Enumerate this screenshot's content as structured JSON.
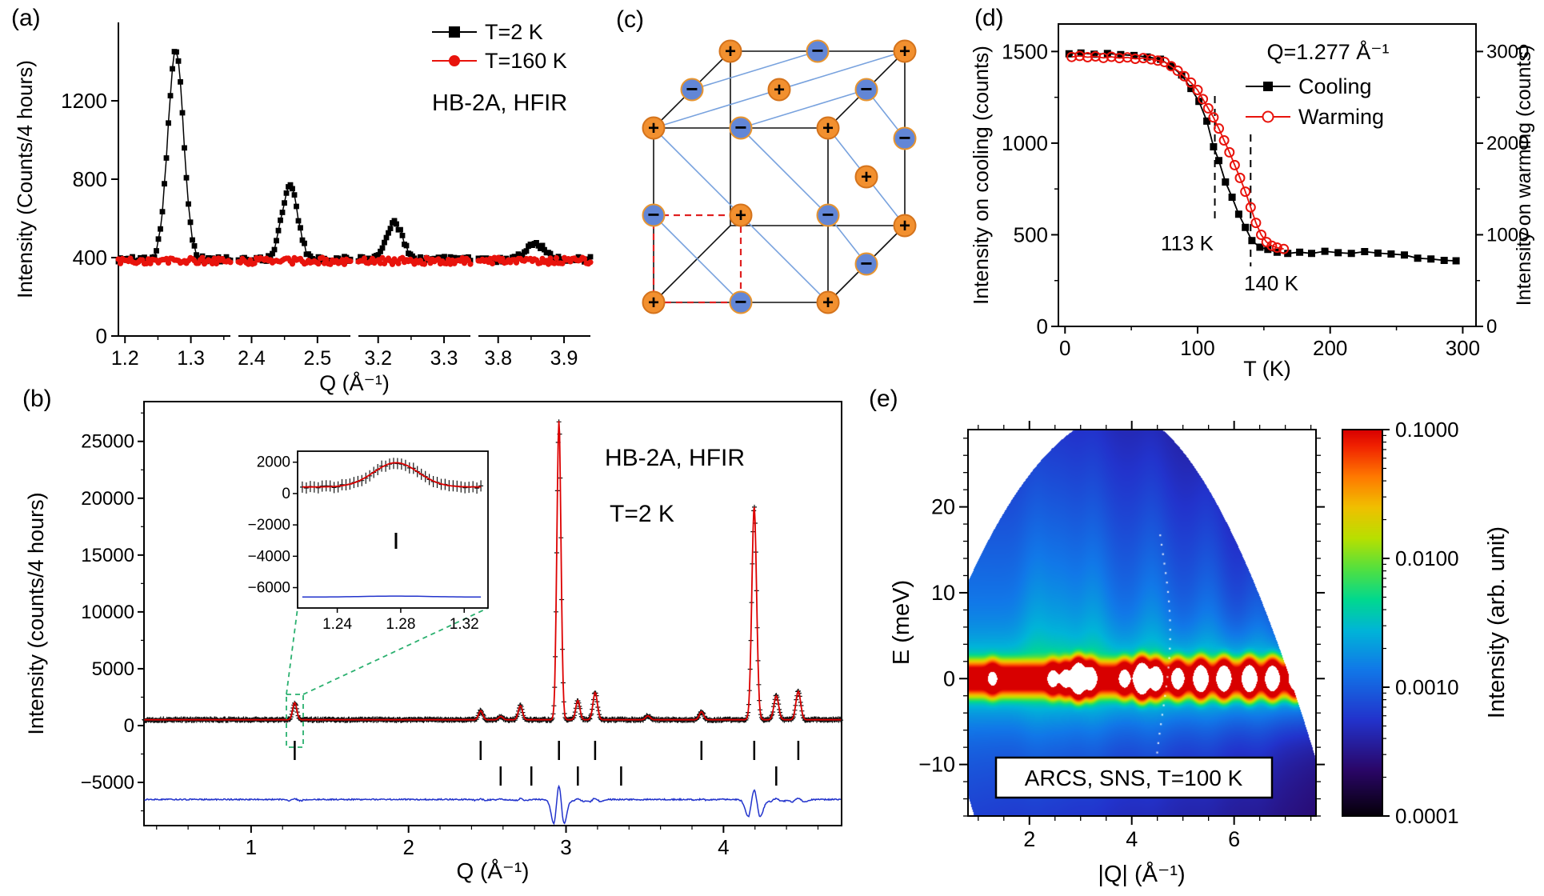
{
  "labels": {
    "a": "(a)",
    "b": "(b)",
    "c": "(c)",
    "d": "(d)",
    "e": "(e)"
  },
  "chart_data": [
    {
      "id": "a",
      "type": "line",
      "panel": "(a)",
      "instrument": "HB-2A, HFIR",
      "xlabel": "Q (Å⁻¹)",
      "ylabel": "Intensity (Counts/4 hours)",
      "ylim": [
        0,
        1600
      ],
      "yticks": [
        0,
        400,
        800,
        1200
      ],
      "series": [
        {
          "name": "T=2 K",
          "color": "#000000",
          "marker": "square",
          "baseline": 390
        },
        {
          "name": "T=160 K",
          "color": "#e8130c",
          "marker": "circle",
          "baseline": 383
        }
      ],
      "segments": [
        {
          "xlim": [
            1.19,
            1.36
          ],
          "xticks": [
            1.2,
            1.3
          ],
          "minor": [
            1.25,
            1.35
          ],
          "peak": {
            "center": 1.277,
            "amplitude": 1065,
            "sigma": 0.012
          }
        },
        {
          "xlim": [
            2.38,
            2.55
          ],
          "xticks": [
            2.4,
            2.5
          ],
          "minor": [
            2.45
          ],
          "peak": {
            "center": 2.458,
            "amplitude": 380,
            "sigma": 0.012
          }
        },
        {
          "xlim": [
            3.17,
            3.34
          ],
          "xticks": [
            3.2,
            3.3
          ],
          "minor": [
            3.25
          ],
          "peak": {
            "center": 3.225,
            "amplitude": 185,
            "sigma": 0.012
          }
        },
        {
          "xlim": [
            3.77,
            3.94
          ],
          "xticks": [
            3.8,
            3.9
          ],
          "minor": [
            3.85
          ],
          "peak": {
            "center": 3.855,
            "amplitude": 90,
            "sigma": 0.013
          }
        }
      ]
    },
    {
      "id": "b",
      "type": "line",
      "panel": "(b)",
      "annotations": [
        "HB-2A, HFIR",
        "T=2 K"
      ],
      "xlabel": "Q (Å⁻¹)",
      "ylabel": "Intensity (counts/4 hours)",
      "xlim": [
        0.32,
        4.75
      ],
      "xticks": [
        1,
        2,
        3,
        4
      ],
      "yticks": [
        -5000,
        0,
        5000,
        10000,
        15000,
        20000,
        25000
      ],
      "baseline": 510,
      "noise": 90,
      "diff_level": -6500,
      "peaks": [
        [
          1.277,
          1500,
          0.013
        ],
        [
          2.458,
          800,
          0.013
        ],
        [
          2.585,
          300,
          0.013
        ],
        [
          2.71,
          1250,
          0.013
        ],
        [
          2.955,
          26300,
          0.013
        ],
        [
          3.075,
          1700,
          0.013
        ],
        [
          3.185,
          2400,
          0.014
        ],
        [
          3.52,
          350,
          0.014
        ],
        [
          3.86,
          700,
          0.014
        ],
        [
          4.195,
          18800,
          0.015
        ],
        [
          4.335,
          2100,
          0.015
        ],
        [
          4.475,
          2500,
          0.015
        ]
      ],
      "bragg_row1": [
        1.277,
        2.458,
        2.955,
        3.185,
        3.86,
        4.195,
        4.475
      ],
      "bragg_row2": [
        2.585,
        2.78,
        3.075,
        3.35,
        4.335
      ],
      "colors": {
        "data": "#151515",
        "fit": "#dd0000",
        "diff": "#2233cc",
        "bragg": "#000000",
        "zoom_box": "#2ab06f"
      },
      "inset": {
        "xlim": [
          1.215,
          1.335
        ],
        "xticks": [
          1.24,
          1.28,
          1.32
        ],
        "yticks": [
          2000,
          0,
          -2000,
          -4000,
          -6000
        ],
        "baseline": 420,
        "peak": {
          "center": 1.277,
          "amplitude": 1550,
          "sigma": 0.014
        },
        "bragg": [
          1.277
        ],
        "diff_level": -6600
      }
    },
    {
      "id": "c",
      "type": "diagram",
      "panel": "(c)",
      "description": "Cubic cell with alternating + and − charge order; blue lines mark (111)-type planes; red dashed square marks sublattice cell",
      "colors": {
        "edge": "#111111",
        "plane": "#78a2de",
        "subcell": "#e02020",
        "plus_fill": "#f2902f",
        "plus_ring": "#d4731c",
        "plus_sign": "#2d2de0",
        "minus_fill": "#6286d6",
        "minus_ring": "#e8952f",
        "minus_sign": "#f2e22e"
      },
      "sites": [
        [
          0,
          0,
          0,
          "+"
        ],
        [
          0.5,
          0,
          0,
          "-"
        ],
        [
          1,
          0,
          0,
          "+"
        ],
        [
          0,
          0.5,
          0,
          "-"
        ],
        [
          0.5,
          0.5,
          0,
          "+"
        ],
        [
          1,
          0.5,
          0,
          "-"
        ],
        [
          0,
          1,
          0,
          "+"
        ],
        [
          0.5,
          1,
          0,
          "-"
        ],
        [
          1,
          1,
          0,
          "+"
        ],
        [
          0,
          1,
          0.5,
          "-"
        ],
        [
          0.5,
          1,
          0.5,
          "+"
        ],
        [
          1,
          1,
          0.5,
          "-"
        ],
        [
          0,
          1,
          1,
          "+"
        ],
        [
          0.5,
          1,
          1,
          "-"
        ],
        [
          1,
          1,
          1,
          "+"
        ],
        [
          1,
          0,
          0.5,
          "-"
        ],
        [
          1,
          0.5,
          0.5,
          "+"
        ],
        [
          1,
          0,
          1,
          "+"
        ],
        [
          1,
          0.5,
          1,
          "-"
        ]
      ],
      "edges": [
        [
          [
            0,
            0,
            0
          ],
          [
            1,
            0,
            0
          ]
        ],
        [
          [
            0,
            0,
            0
          ],
          [
            0,
            1,
            0
          ]
        ],
        [
          [
            0,
            0,
            0
          ],
          [
            0,
            0,
            1
          ]
        ],
        [
          [
            1,
            0,
            0
          ],
          [
            1,
            1,
            0
          ]
        ],
        [
          [
            1,
            0,
            0
          ],
          [
            1,
            0,
            1
          ]
        ],
        [
          [
            0,
            1,
            0
          ],
          [
            1,
            1,
            0
          ]
        ],
        [
          [
            0,
            1,
            0
          ],
          [
            0,
            1,
            1
          ]
        ],
        [
          [
            0,
            0,
            1
          ],
          [
            1,
            0,
            1
          ]
        ],
        [
          [
            0,
            0,
            1
          ],
          [
            0,
            1,
            1
          ]
        ],
        [
          [
            1,
            1,
            0
          ],
          [
            1,
            1,
            1
          ]
        ],
        [
          [
            1,
            0,
            1
          ],
          [
            1,
            1,
            1
          ]
        ],
        [
          [
            0,
            1,
            1
          ],
          [
            1,
            1,
            1
          ]
        ]
      ],
      "plane_lines": [
        [
          [
            0,
            1,
            0
          ],
          [
            1,
            1,
            1
          ]
        ],
        [
          [
            0.5,
            1,
            0
          ],
          [
            1,
            1,
            0.5
          ]
        ],
        [
          [
            0,
            1,
            0.5
          ],
          [
            0.5,
            1,
            1
          ]
        ],
        [
          [
            1,
            1,
            0
          ],
          [
            1,
            0,
            1
          ]
        ],
        [
          [
            1,
            0.5,
            0
          ],
          [
            1,
            0,
            0.5
          ]
        ],
        [
          [
            1,
            1,
            0.5
          ],
          [
            1,
            0.5,
            1
          ]
        ],
        [
          [
            0,
            1,
            0
          ],
          [
            1,
            0,
            0
          ]
        ],
        [
          [
            0,
            0.5,
            0
          ],
          [
            0.5,
            0,
            0
          ]
        ],
        [
          [
            0.5,
            1,
            0
          ],
          [
            1,
            0.5,
            0
          ]
        ]
      ],
      "subcell": [
        [
          0,
          0,
          0
        ],
        [
          0.5,
          0,
          0
        ],
        [
          0.5,
          0.5,
          0
        ],
        [
          0,
          0.5,
          0
        ]
      ]
    },
    {
      "id": "d",
      "type": "line",
      "panel": "(d)",
      "annotation": "Q=1.277 Å⁻¹",
      "xlabel": "T (K)",
      "ylabel_left": "Intensity on cooling (counts)",
      "ylabel_right": "Intensity on warming (counts)",
      "xlim": [
        -5,
        310
      ],
      "xticks": [
        0,
        100,
        200,
        300
      ],
      "ylim_left": [
        0,
        1650
      ],
      "yticks_left": [
        0,
        500,
        1000,
        1500
      ],
      "ylim_right": [
        0,
        3300
      ],
      "yticks_right": [
        0,
        1000,
        2000,
        3000
      ],
      "transition_labels": [
        {
          "text": "113 K",
          "T": 113
        },
        {
          "text": "140 K",
          "T": 140
        }
      ],
      "series": [
        {
          "name": "Cooling",
          "color": "#000000",
          "marker": "square",
          "axis": "left",
          "points": [
            [
              3,
              1487
            ],
            [
              12,
              1492
            ],
            [
              22,
              1485
            ],
            [
              32,
              1489
            ],
            [
              42,
              1483
            ],
            [
              52,
              1478
            ],
            [
              62,
              1470
            ],
            [
              72,
              1458
            ],
            [
              80,
              1420
            ],
            [
              88,
              1372
            ],
            [
              95,
              1298
            ],
            [
              101,
              1228
            ],
            [
              107,
              1120
            ],
            [
              112,
              980
            ],
            [
              116,
              905
            ],
            [
              121,
              788
            ],
            [
              126,
              705
            ],
            [
              131,
              612
            ],
            [
              136,
              540
            ],
            [
              141,
              468
            ],
            [
              147,
              432
            ],
            [
              153,
              420
            ],
            [
              160,
              405
            ],
            [
              168,
              398
            ],
            [
              177,
              405
            ],
            [
              186,
              398
            ],
            [
              196,
              410
            ],
            [
              206,
              402
            ],
            [
              216,
              398
            ],
            [
              226,
              408
            ],
            [
              236,
              400
            ],
            [
              246,
              395
            ],
            [
              256,
              390
            ],
            [
              266,
              372
            ],
            [
              276,
              368
            ],
            [
              286,
              360
            ],
            [
              295,
              358
            ]
          ]
        },
        {
          "name": "Warming",
          "color": "#e8130c",
          "marker": "open-circle",
          "axis": "right",
          "points": [
            [
              5,
              2940
            ],
            [
              11,
              2952
            ],
            [
              17,
              2938
            ],
            [
              23,
              2946
            ],
            [
              29,
              2930
            ],
            [
              35,
              2942
            ],
            [
              41,
              2928
            ],
            [
              47,
              2935
            ],
            [
              53,
              2920
            ],
            [
              59,
              2928
            ],
            [
              65,
              2915
            ],
            [
              70,
              2900
            ],
            [
              75,
              2885
            ],
            [
              80,
              2840
            ],
            [
              85,
              2790
            ],
            [
              90,
              2730
            ],
            [
              95,
              2660
            ],
            [
              100,
              2580
            ],
            [
              104,
              2480
            ],
            [
              108,
              2380
            ],
            [
              112,
              2280
            ],
            [
              116,
              2160
            ],
            [
              120,
              2030
            ],
            [
              124,
              1900
            ],
            [
              128,
              1760
            ],
            [
              132,
              1620
            ],
            [
              136,
              1470
            ],
            [
              140,
              1300
            ],
            [
              144,
              1130
            ],
            [
              148,
              1000
            ],
            [
              152,
              920
            ],
            [
              156,
              880
            ],
            [
              160,
              860
            ],
            [
              165,
              845
            ]
          ]
        }
      ]
    },
    {
      "id": "e",
      "type": "heatmap",
      "panel": "(e)",
      "annotation": "ARCS, SNS, T=100 K",
      "xlabel": "|Q| (Å⁻¹)",
      "ylabel": "E (meV)",
      "xlim": [
        0.8,
        7.6
      ],
      "ylim": [
        -16,
        29
      ],
      "xticks": [
        2,
        4,
        6
      ],
      "yticks": [
        -10,
        0,
        10,
        20
      ],
      "colorbar": {
        "label": "Intensity (arb. unit)",
        "tick_labels": [
          "0.1000",
          "0.0100",
          "0.0010",
          "0.0001"
        ],
        "log_range": [
          -4,
          -1
        ]
      },
      "colormap": [
        [
          0,
          "#050008"
        ],
        [
          0.12,
          "#2a0668"
        ],
        [
          0.25,
          "#2233cc"
        ],
        [
          0.38,
          "#1178e8"
        ],
        [
          0.48,
          "#00b4d8"
        ],
        [
          0.56,
          "#00d890"
        ],
        [
          0.64,
          "#52e040"
        ],
        [
          0.72,
          "#b8e000"
        ],
        [
          0.8,
          "#f0c000"
        ],
        [
          0.88,
          "#ff7800"
        ],
        [
          0.96,
          "#f02000"
        ],
        [
          1,
          "#d80000"
        ]
      ],
      "model": {
        "Ei": 31,
        "theta_min": 3,
        "theta_max": 133,
        "elastic_base": 0.28,
        "elastic_sigmaE": 0.85,
        "bragg_sigmaQ": 0.07,
        "bragg": [
          [
            1.28,
            0.5
          ],
          [
            2.46,
            0.7
          ],
          [
            2.71,
            0.8
          ],
          [
            2.96,
            5
          ],
          [
            3.19,
            1.5
          ],
          [
            3.86,
            0.8
          ],
          [
            4.2,
            5
          ],
          [
            4.47,
            1.8
          ],
          [
            4.9,
            1.2
          ],
          [
            5.35,
            2.5
          ],
          [
            5.8,
            2.2
          ],
          [
            6.3,
            2.5
          ],
          [
            6.75,
            2.0
          ],
          [
            7.2,
            1.5
          ]
        ],
        "phonons": [
          [
            2.15,
            1
          ],
          [
            2.65,
            0.7
          ],
          [
            3.25,
            1
          ],
          [
            4.4,
            0.8
          ],
          [
            5.5,
            0.6
          ],
          [
            6.5,
            0.5
          ]
        ]
      }
    }
  ]
}
